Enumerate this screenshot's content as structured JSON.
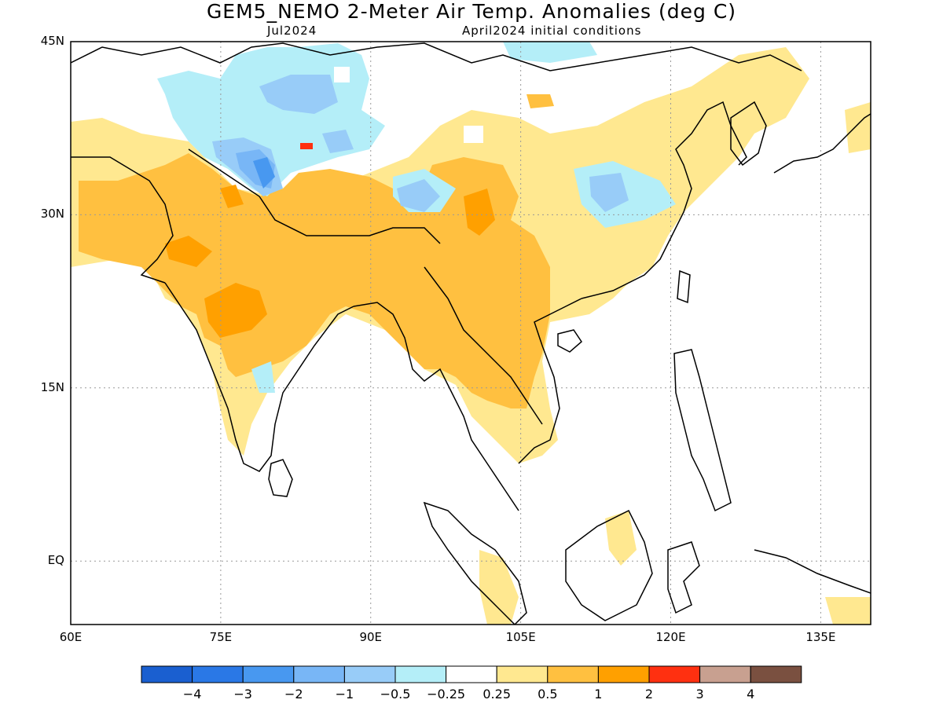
{
  "title": "GEM5_NEMO 2-Meter Air Temp. Anomalies (deg C)",
  "subtitle_left": "Jul2024",
  "subtitle_right": "April2024 initial conditions",
  "map": {
    "lon_range": [
      60,
      140
    ],
    "lat_range": [
      -5.5,
      45
    ],
    "x_ticks": [
      "60E",
      "75E",
      "90E",
      "105E",
      "120E",
      "135E"
    ],
    "x_tick_lons": [
      60,
      75,
      90,
      105,
      120,
      135
    ],
    "y_ticks": [
      "45N",
      "30N",
      "15N",
      "EQ"
    ],
    "y_tick_lats": [
      45,
      30,
      15,
      0
    ],
    "grid": "dotted"
  },
  "colorbar": {
    "colors": [
      "#1a5fd0",
      "#2a78e6",
      "#4898f0",
      "#78b6f6",
      "#98ccf8",
      "#b4eef8",
      "#ffffff",
      "#ffe890",
      "#ffc040",
      "#ffa000",
      "#ff3010",
      "#c8a090",
      "#7a5040"
    ],
    "labels": [
      "-4",
      "-3",
      "-2",
      "-1",
      "-0.5",
      "-0.25",
      "0.25",
      "0.5",
      "1",
      "2",
      "3",
      "4"
    ]
  }
}
